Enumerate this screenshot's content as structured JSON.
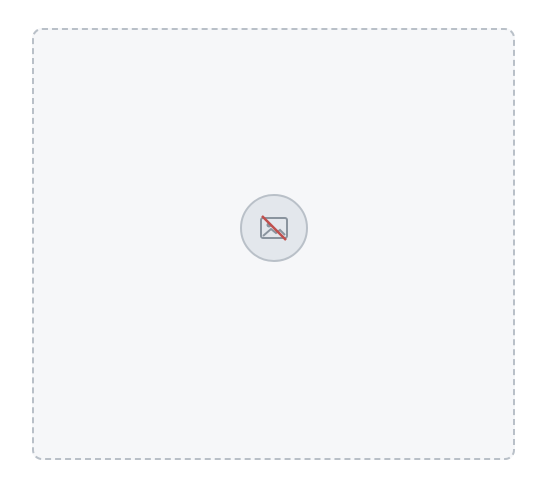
{
  "notice": {
    "title": "",
    "body": ""
  }
}
